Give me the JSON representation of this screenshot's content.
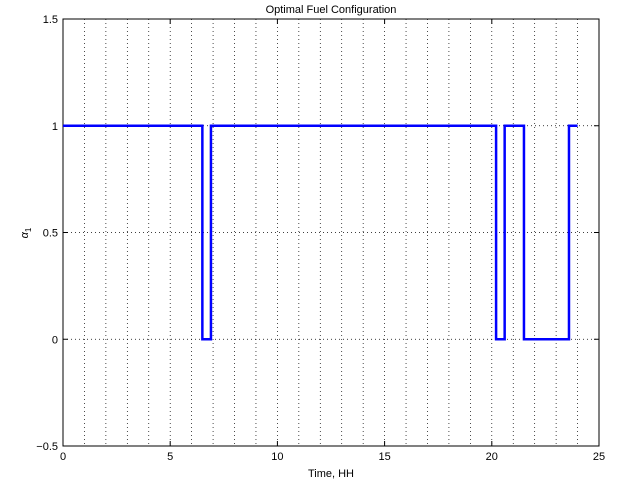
{
  "chart_data": {
    "type": "line",
    "title": "Optimal Fuel Configuration",
    "xlabel": "Time, HH",
    "ylabel_symbol": "α",
    "ylabel_subscript": "1",
    "xlim": [
      0,
      25
    ],
    "ylim": [
      -0.5,
      1.5
    ],
    "xticks": [
      "0",
      "5",
      "10",
      "15",
      "20",
      "25"
    ],
    "yticks": [
      "-0.5",
      "0",
      "0.5",
      "1",
      "1.5"
    ],
    "grid": true,
    "grid_style": "dotted",
    "x_minor_grid_step": 1,
    "line_color": "#0000ff",
    "series": [
      {
        "x": [
          0,
          6.5,
          6.5,
          6.9,
          6.9,
          20.2,
          20.2,
          20.6,
          20.6,
          21.5,
          21.5,
          23.6,
          23.6,
          24
        ],
        "values": [
          1,
          1,
          0,
          0,
          1,
          1,
          0,
          0,
          1,
          1,
          0,
          0,
          1,
          1
        ]
      }
    ]
  }
}
